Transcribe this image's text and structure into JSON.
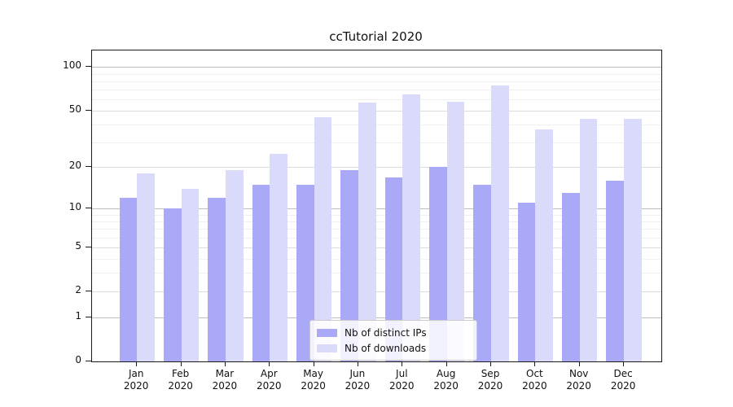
{
  "title": "ccTutorial 2020",
  "chart_data": {
    "type": "bar",
    "title": "ccTutorial 2020",
    "categories": [
      "Jan",
      "Feb",
      "Mar",
      "Apr",
      "May",
      "Jun",
      "Jul",
      "Aug",
      "Sep",
      "Oct",
      "Nov",
      "Dec"
    ],
    "year_label": "2020",
    "series": [
      {
        "name": "Nb of distinct IPs",
        "color": "#a9a9f8",
        "values": [
          12,
          10,
          12,
          15,
          15,
          19,
          17,
          20,
          15,
          11,
          13,
          16
        ]
      },
      {
        "name": "Nb of downloads",
        "color": "#dadafb",
        "values": [
          18,
          14,
          19,
          25,
          45,
          57,
          65,
          58,
          75,
          37,
          44,
          44
        ]
      }
    ],
    "y_scale": "log10(value+1)",
    "y_ticks": [
      0,
      1,
      2,
      5,
      10,
      20,
      50,
      100
    ],
    "y_decade_ticks": [
      1,
      10,
      100
    ],
    "y_minor_gridlines": [
      3,
      4,
      6,
      7,
      8,
      9,
      30,
      40,
      60,
      70,
      80,
      90
    ],
    "y_axis_top_value": 130,
    "grid": "on",
    "legend_position": "lower center",
    "xlabel": "",
    "ylabel": ""
  },
  "colors": {
    "series_ips": "#a9a9f8",
    "series_downloads": "#dadafb",
    "axis": "#1a1a1a",
    "grid_decade": "#bdbdbd",
    "grid_major": "#dcdcdc",
    "grid_minor": "#efefef"
  }
}
